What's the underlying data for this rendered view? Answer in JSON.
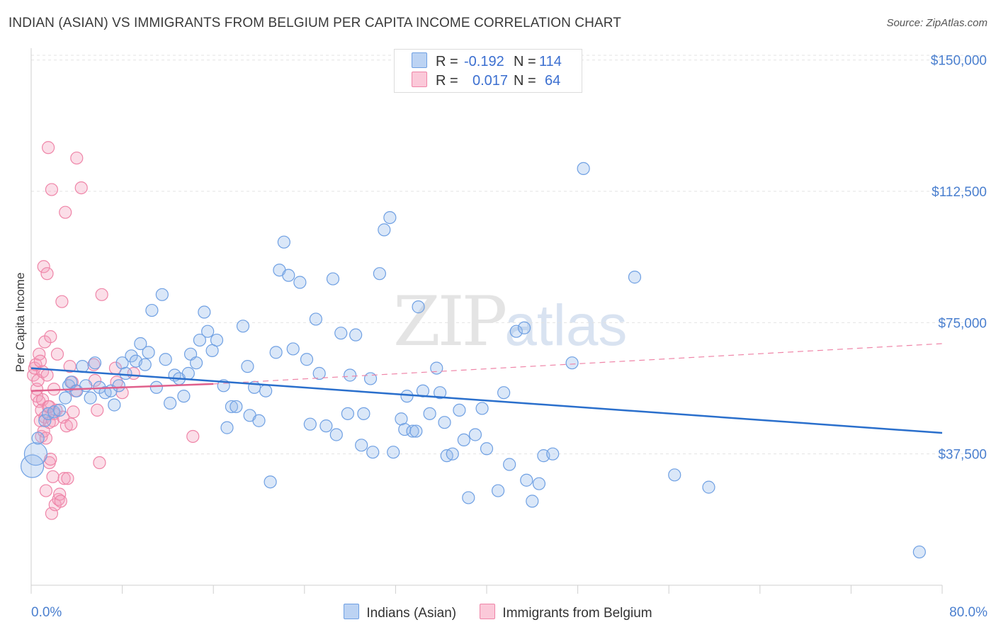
{
  "title": "INDIAN (ASIAN) VS IMMIGRANTS FROM BELGIUM PER CAPITA INCOME CORRELATION CHART",
  "source": "Source: ZipAtlas.com",
  "watermark": {
    "zip": "ZIP",
    "atlas": "atlas"
  },
  "colors": {
    "blue": "#6fa0e3",
    "blue_line": "#2a6fcc",
    "pink": "#ef85a8",
    "pink_line": "#e0608c",
    "tick_text": "#4a7fcf"
  },
  "legend": {
    "series1": {
      "r_label": "R =",
      "r_value": "-0.192",
      "n_label": "N =",
      "n_value": "114"
    },
    "series2": {
      "r_label": "R =",
      "r_value": "0.017",
      "n_label": "N =",
      "n_value": "64"
    }
  },
  "bottom_legend": {
    "series1": "Indians (Asian)",
    "series2": "Immigrants from Belgium"
  },
  "chart_data": {
    "type": "scatter",
    "title": "INDIAN (ASIAN) VS IMMIGRANTS FROM BELGIUM PER CAPITA INCOME CORRELATION CHART",
    "xlabel": "",
    "ylabel": "Per Capita Income",
    "xlim": [
      0,
      80
    ],
    "ylim": [
      0,
      155000
    ],
    "x_tick_labels": [
      "0.0%",
      "80.0%"
    ],
    "y_ticks": [
      37500,
      75000,
      112500,
      150000
    ],
    "y_tick_labels": [
      "$37,500",
      "$75,000",
      "$112,500",
      "$150,000"
    ],
    "grid": "horizontal dashed",
    "legend_position": "top-center",
    "series": [
      {
        "name": "Indians (Asian)",
        "color": "#6fa0e3",
        "trend": {
          "x": [
            0,
            80
          ],
          "y": [
            62000,
            43500
          ],
          "style": "solid"
        },
        "points": [
          [
            0.1,
            34000
          ],
          [
            0.4,
            37500
          ],
          [
            0.6,
            42000
          ],
          [
            1.2,
            47000
          ],
          [
            1.5,
            49000
          ],
          [
            2.0,
            49500
          ],
          [
            2.5,
            50000
          ],
          [
            3.0,
            53500
          ],
          [
            3.3,
            57000
          ],
          [
            3.5,
            58000
          ],
          [
            4.0,
            55500
          ],
          [
            4.5,
            62500
          ],
          [
            4.8,
            57000
          ],
          [
            5.2,
            53500
          ],
          [
            5.6,
            63500
          ],
          [
            6.0,
            56500
          ],
          [
            6.5,
            55000
          ],
          [
            7.0,
            55500
          ],
          [
            7.3,
            51500
          ],
          [
            7.7,
            57000
          ],
          [
            8.0,
            63500
          ],
          [
            8.3,
            60500
          ],
          [
            8.8,
            65500
          ],
          [
            9.2,
            64000
          ],
          [
            9.6,
            69000
          ],
          [
            10.0,
            63000
          ],
          [
            10.3,
            66500
          ],
          [
            10.6,
            78500
          ],
          [
            11.0,
            56500
          ],
          [
            11.5,
            83000
          ],
          [
            11.8,
            64500
          ],
          [
            12.2,
            52000
          ],
          [
            12.6,
            60000
          ],
          [
            13.0,
            59000
          ],
          [
            13.4,
            54000
          ],
          [
            13.8,
            60500
          ],
          [
            14.0,
            66000
          ],
          [
            14.5,
            63500
          ],
          [
            14.8,
            70000
          ],
          [
            15.2,
            78000
          ],
          [
            15.5,
            72500
          ],
          [
            15.9,
            67000
          ],
          [
            16.3,
            70000
          ],
          [
            16.9,
            57000
          ],
          [
            17.2,
            45000
          ],
          [
            17.6,
            51000
          ],
          [
            18.0,
            51000
          ],
          [
            18.6,
            74000
          ],
          [
            19.0,
            62500
          ],
          [
            19.2,
            48500
          ],
          [
            19.6,
            56500
          ],
          [
            20.0,
            47000
          ],
          [
            20.6,
            55500
          ],
          [
            21.0,
            29500
          ],
          [
            21.5,
            66500
          ],
          [
            21.8,
            90000
          ],
          [
            22.2,
            98000
          ],
          [
            22.6,
            88500
          ],
          [
            23.0,
            67500
          ],
          [
            23.6,
            86500
          ],
          [
            24.2,
            64500
          ],
          [
            24.5,
            46000
          ],
          [
            25.0,
            76000
          ],
          [
            25.3,
            60500
          ],
          [
            25.9,
            45500
          ],
          [
            26.5,
            87500
          ],
          [
            26.8,
            43000
          ],
          [
            27.2,
            72000
          ],
          [
            27.8,
            49000
          ],
          [
            28.0,
            60000
          ],
          [
            28.5,
            71500
          ],
          [
            29.0,
            40000
          ],
          [
            29.2,
            49000
          ],
          [
            29.8,
            59000
          ],
          [
            30.0,
            38000
          ],
          [
            30.6,
            89000
          ],
          [
            31.0,
            101500
          ],
          [
            31.5,
            105000
          ],
          [
            31.8,
            38000
          ],
          [
            32.5,
            47500
          ],
          [
            32.8,
            44500
          ],
          [
            33.0,
            54000
          ],
          [
            33.5,
            44000
          ],
          [
            33.8,
            44000
          ],
          [
            34.0,
            79500
          ],
          [
            34.4,
            55500
          ],
          [
            35.0,
            49000
          ],
          [
            35.6,
            62000
          ],
          [
            35.9,
            55000
          ],
          [
            36.3,
            46500
          ],
          [
            36.5,
            37000
          ],
          [
            37.0,
            37500
          ],
          [
            37.6,
            50000
          ],
          [
            38.0,
            41500
          ],
          [
            38.4,
            25000
          ],
          [
            39.0,
            43000
          ],
          [
            39.6,
            50500
          ],
          [
            40.0,
            39000
          ],
          [
            41.0,
            27000
          ],
          [
            41.5,
            55000
          ],
          [
            42.0,
            34500
          ],
          [
            42.6,
            72500
          ],
          [
            43.3,
            73500
          ],
          [
            43.5,
            30000
          ],
          [
            44.0,
            24000
          ],
          [
            44.6,
            29000
          ],
          [
            45.0,
            37000
          ],
          [
            45.8,
            37500
          ],
          [
            47.5,
            63500
          ],
          [
            48.5,
            119000
          ],
          [
            53.0,
            88000
          ],
          [
            56.5,
            31500
          ],
          [
            59.5,
            28000
          ],
          [
            78.0,
            9500
          ]
        ]
      },
      {
        "name": "Immigrants from Belgium",
        "color": "#ef85a8",
        "trend": {
          "x": [
            0,
            16
          ],
          "y": [
            55500,
            57500
          ],
          "style": "solid",
          "extended": {
            "x": [
              16,
              80
            ],
            "y": [
              57500,
              69000
            ],
            "style": "dashed"
          }
        },
        "points": [
          [
            0.2,
            60000
          ],
          [
            0.3,
            62000
          ],
          [
            0.4,
            63000
          ],
          [
            0.5,
            56000
          ],
          [
            0.5,
            54000
          ],
          [
            0.6,
            58500
          ],
          [
            0.7,
            52500
          ],
          [
            0.7,
            66000
          ],
          [
            0.8,
            47000
          ],
          [
            0.8,
            64000
          ],
          [
            0.9,
            42500
          ],
          [
            0.9,
            50000
          ],
          [
            1.0,
            61000
          ],
          [
            1.0,
            53000
          ],
          [
            1.1,
            91000
          ],
          [
            1.1,
            44000
          ],
          [
            1.2,
            69500
          ],
          [
            1.2,
            48000
          ],
          [
            1.3,
            27000
          ],
          [
            1.3,
            42000
          ],
          [
            1.4,
            60000
          ],
          [
            1.4,
            89000
          ],
          [
            1.5,
            51000
          ],
          [
            1.5,
            125000
          ],
          [
            1.6,
            46500
          ],
          [
            1.6,
            35000
          ],
          [
            1.7,
            71000
          ],
          [
            1.7,
            36000
          ],
          [
            1.8,
            113000
          ],
          [
            1.8,
            20500
          ],
          [
            1.9,
            31000
          ],
          [
            1.9,
            47000
          ],
          [
            2.0,
            49000
          ],
          [
            2.0,
            56000
          ],
          [
            2.1,
            23000
          ],
          [
            2.2,
            50000
          ],
          [
            2.3,
            66000
          ],
          [
            2.4,
            24500
          ],
          [
            2.5,
            26000
          ],
          [
            2.6,
            24000
          ],
          [
            2.7,
            81000
          ],
          [
            2.8,
            48000
          ],
          [
            2.9,
            30500
          ],
          [
            3.0,
            106500
          ],
          [
            3.1,
            45500
          ],
          [
            3.2,
            30500
          ],
          [
            3.4,
            62500
          ],
          [
            3.5,
            46000
          ],
          [
            3.6,
            58000
          ],
          [
            3.7,
            49500
          ],
          [
            3.9,
            55500
          ],
          [
            4.0,
            122000
          ],
          [
            4.4,
            113500
          ],
          [
            5.5,
            63000
          ],
          [
            5.6,
            58500
          ],
          [
            5.8,
            50000
          ],
          [
            6.0,
            35000
          ],
          [
            6.2,
            83000
          ],
          [
            7.4,
            62000
          ],
          [
            7.5,
            58000
          ],
          [
            8.0,
            55000
          ],
          [
            9.0,
            60500
          ],
          [
            14.2,
            42500
          ],
          [
            1.6,
            51000
          ]
        ]
      }
    ]
  }
}
